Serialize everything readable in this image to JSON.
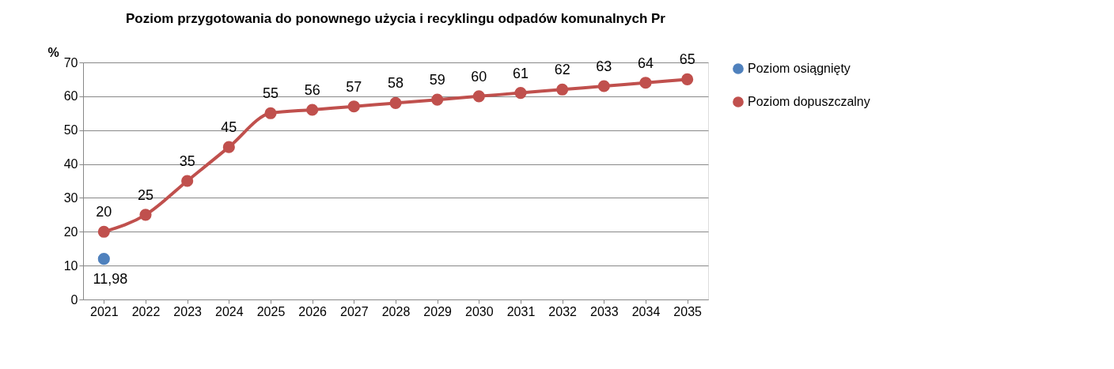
{
  "chart_data": {
    "type": "line",
    "title": "Poziom przygotowania do ponownego użycia i recyklingu odpadów komunalnych Pr",
    "ylabel": "%",
    "categories": [
      "2021",
      "2022",
      "2023",
      "2024",
      "2025",
      "2026",
      "2027",
      "2028",
      "2029",
      "2030",
      "2031",
      "2032",
      "2033",
      "2034",
      "2035"
    ],
    "series": [
      {
        "name": "Poziom osiągnięty",
        "color": "#4f81bd",
        "values": [
          11.98,
          null,
          null,
          null,
          null,
          null,
          null,
          null,
          null,
          null,
          null,
          null,
          null,
          null,
          null
        ],
        "value_labels": [
          "11,98",
          null,
          null,
          null,
          null,
          null,
          null,
          null,
          null,
          null,
          null,
          null,
          null,
          null,
          null
        ]
      },
      {
        "name": "Poziom dopuszczalny",
        "color": "#c0504d",
        "values": [
          20,
          25,
          35,
          45,
          55,
          56,
          57,
          58,
          59,
          60,
          61,
          62,
          63,
          64,
          65
        ],
        "value_labels": [
          "20",
          "25",
          "35",
          "45",
          "55",
          "56",
          "57",
          "58",
          "59",
          "60",
          "61",
          "62",
          "63",
          "64",
          "65"
        ]
      }
    ],
    "ylim": [
      0,
      70
    ],
    "yticks": [
      0,
      10,
      20,
      30,
      40,
      50,
      60,
      70
    ],
    "grid": "y",
    "legend": "right",
    "marker": "circle",
    "line_style": "solid"
  }
}
